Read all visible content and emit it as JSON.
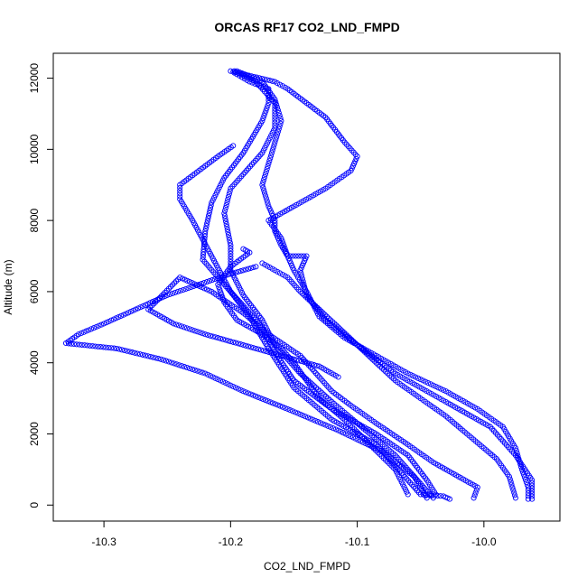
{
  "chart_data": {
    "type": "scatter",
    "title": "ORCAS RF17 CO2_LND_FMPD",
    "xlabel": "CO2_LND_FMPD",
    "ylabel": "Altitude (m)",
    "xlim": [
      -10.34,
      -9.94
    ],
    "ylim": [
      -450,
      12700
    ],
    "xticks": [
      -10.3,
      -10.2,
      -10.1,
      -10.0
    ],
    "xtick_labels": [
      "-10.3",
      "-10.2",
      "-10.1",
      "-10.0"
    ],
    "yticks": [
      0,
      2000,
      4000,
      6000,
      8000,
      10000,
      12000
    ],
    "ytick_labels": [
      "0",
      "2000",
      "4000",
      "6000",
      "8000",
      "10000",
      "12000"
    ],
    "grid": false,
    "legend": "none",
    "marker": "open-circle",
    "color": "#0000ff",
    "profiles": [
      {
        "name": "",
        "points": [
          [
            -10.027,
            170
          ],
          [
            -10.032,
            250
          ],
          [
            -10.05,
            300
          ],
          [
            -10.065,
            900
          ],
          [
            -10.085,
            1700
          ],
          [
            -10.12,
            2400
          ],
          [
            -10.15,
            3300
          ],
          [
            -10.17,
            4400
          ],
          [
            -10.185,
            5300
          ],
          [
            -10.2,
            6000
          ],
          [
            -10.215,
            7000
          ],
          [
            -10.23,
            8000
          ],
          [
            -10.24,
            8600
          ],
          [
            -10.24,
            9000
          ],
          [
            -10.225,
            9400
          ],
          [
            -10.21,
            9800
          ],
          [
            -10.198,
            10100
          ]
        ]
      },
      {
        "name": "",
        "points": [
          [
            -10.038,
            300
          ],
          [
            -10.045,
            700
          ],
          [
            -10.06,
            1400
          ],
          [
            -10.085,
            2000
          ],
          [
            -10.12,
            2700
          ],
          [
            -10.15,
            3500
          ],
          [
            -10.165,
            4300
          ],
          [
            -10.175,
            5000
          ],
          [
            -10.19,
            5600
          ],
          [
            -10.205,
            6200
          ],
          [
            -10.222,
            6900
          ],
          [
            -10.22,
            7700
          ],
          [
            -10.215,
            8500
          ],
          [
            -10.205,
            9200
          ],
          [
            -10.19,
            9900
          ],
          [
            -10.175,
            10800
          ],
          [
            -10.17,
            11300
          ],
          [
            -10.17,
            11700
          ],
          [
            -10.185,
            11900
          ],
          [
            -10.197,
            12150
          ]
        ]
      },
      {
        "name": "",
        "points": [
          [
            -10.04,
            200
          ],
          [
            -10.05,
            600
          ],
          [
            -10.07,
            1400
          ],
          [
            -10.09,
            2000
          ],
          [
            -10.12,
            2900
          ],
          [
            -10.145,
            3700
          ],
          [
            -10.165,
            4500
          ],
          [
            -10.175,
            5200
          ],
          [
            -10.19,
            5900
          ],
          [
            -10.2,
            6600
          ],
          [
            -10.2,
            7300
          ],
          [
            -10.205,
            8200
          ],
          [
            -10.2,
            8900
          ],
          [
            -10.19,
            9300
          ],
          [
            -10.175,
            9900
          ],
          [
            -10.165,
            10600
          ],
          [
            -10.165,
            11300
          ],
          [
            -10.18,
            11900
          ],
          [
            -10.197,
            12200
          ]
        ]
      },
      {
        "name": "",
        "points": [
          [
            -9.962,
            170
          ],
          [
            -9.962,
            700
          ],
          [
            -9.975,
            1400
          ],
          [
            -9.995,
            2200
          ],
          [
            -10.03,
            2900
          ],
          [
            -10.07,
            3700
          ],
          [
            -10.1,
            4500
          ],
          [
            -10.125,
            5200
          ],
          [
            -10.14,
            5900
          ],
          [
            -10.145,
            6600
          ],
          [
            -10.14,
            7000
          ],
          [
            -10.155,
            7000
          ],
          [
            -10.16,
            7300
          ],
          [
            -10.165,
            7700
          ],
          [
            -10.165,
            8000
          ],
          [
            -10.17,
            8400
          ],
          [
            -10.175,
            9000
          ],
          [
            -10.17,
            9600
          ],
          [
            -10.165,
            10200
          ],
          [
            -10.16,
            10800
          ],
          [
            -10.165,
            11400
          ],
          [
            -10.175,
            11900
          ],
          [
            -10.195,
            12200
          ]
        ]
      },
      {
        "name": "",
        "points": [
          [
            -9.965,
            170
          ],
          [
            -9.965,
            500
          ],
          [
            -9.97,
            1000
          ],
          [
            -9.975,
            1600
          ],
          [
            -9.985,
            2200
          ],
          [
            -10.005,
            2700
          ],
          [
            -10.03,
            3200
          ],
          [
            -10.06,
            3700
          ],
          [
            -10.085,
            4200
          ],
          [
            -10.11,
            4700
          ],
          [
            -10.13,
            5300
          ],
          [
            -10.14,
            6000
          ],
          [
            -10.15,
            6600
          ],
          [
            -10.155,
            7000
          ],
          [
            -10.16,
            7500
          ],
          [
            -10.17,
            8000
          ],
          [
            -10.15,
            8400
          ],
          [
            -10.125,
            8900
          ],
          [
            -10.105,
            9400
          ],
          [
            -10.1,
            9800
          ],
          [
            -10.11,
            10200
          ],
          [
            -10.125,
            10900
          ],
          [
            -10.14,
            11300
          ],
          [
            -10.155,
            11700
          ],
          [
            -10.165,
            11900
          ],
          [
            -10.2,
            12200
          ]
        ]
      },
      {
        "name": "",
        "points": [
          [
            -9.975,
            200
          ],
          [
            -9.98,
            800
          ],
          [
            -9.99,
            1300
          ],
          [
            -10.01,
            1900
          ],
          [
            -10.03,
            2500
          ],
          [
            -10.05,
            3000
          ],
          [
            -10.07,
            3500
          ],
          [
            -10.085,
            4000
          ],
          [
            -10.1,
            4500
          ],
          [
            -10.115,
            5000
          ],
          [
            -10.13,
            5500
          ],
          [
            -10.145,
            6000
          ],
          [
            -10.155,
            6400
          ],
          [
            -10.165,
            6600
          ],
          [
            -10.175,
            6800
          ]
        ]
      },
      {
        "name": "",
        "points": [
          [
            -10.008,
            200
          ],
          [
            -10.005,
            500
          ],
          [
            -10.02,
            800
          ],
          [
            -10.04,
            1200
          ],
          [
            -10.06,
            1700
          ],
          [
            -10.085,
            2300
          ],
          [
            -10.105,
            2800
          ],
          [
            -10.12,
            3200
          ],
          [
            -10.13,
            3600
          ],
          [
            -10.145,
            4200
          ],
          [
            -10.17,
            4800
          ],
          [
            -10.19,
            5400
          ],
          [
            -10.215,
            6000
          ],
          [
            -10.24,
            6400
          ],
          [
            -10.265,
            5500
          ],
          [
            -10.245,
            5100
          ],
          [
            -10.22,
            4800
          ],
          [
            -10.19,
            4500
          ],
          [
            -10.16,
            4200
          ],
          [
            -10.13,
            3900
          ],
          [
            -10.115,
            3600
          ]
        ]
      },
      {
        "name": "",
        "points": [
          [
            -10.045,
            200
          ],
          [
            -10.055,
            800
          ],
          [
            -10.08,
            1500
          ],
          [
            -10.115,
            2100
          ],
          [
            -10.155,
            2700
          ],
          [
            -10.19,
            3200
          ],
          [
            -10.22,
            3700
          ],
          [
            -10.255,
            4100
          ],
          [
            -10.29,
            4400
          ],
          [
            -10.33,
            4550
          ],
          [
            -10.32,
            4800
          ],
          [
            -10.3,
            5100
          ],
          [
            -10.275,
            5500
          ],
          [
            -10.25,
            5900
          ],
          [
            -10.225,
            6200
          ],
          [
            -10.2,
            6500
          ],
          [
            -10.18,
            6700
          ]
        ]
      },
      {
        "name": "",
        "points": [
          [
            -10.06,
            300
          ],
          [
            -10.07,
            1000
          ],
          [
            -10.09,
            1700
          ],
          [
            -10.11,
            2400
          ],
          [
            -10.13,
            3000
          ],
          [
            -10.14,
            3500
          ],
          [
            -10.15,
            4000
          ],
          [
            -10.16,
            4400
          ],
          [
            -10.175,
            4800
          ],
          [
            -10.195,
            5200
          ],
          [
            -10.205,
            5700
          ],
          [
            -10.21,
            6200
          ],
          [
            -10.2,
            6700
          ],
          [
            -10.185,
            7100
          ],
          [
            -10.19,
            7200
          ]
        ]
      }
    ]
  }
}
